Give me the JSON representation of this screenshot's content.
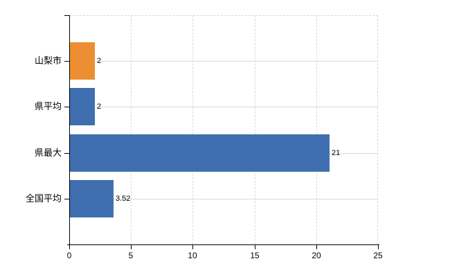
{
  "chart_data": {
    "type": "bar",
    "orientation": "horizontal",
    "title": "",
    "categories": [
      "山梨市",
      "県平均",
      "県最大",
      "全国平均"
    ],
    "values": [
      2,
      2,
      21,
      3.52
    ],
    "value_labels": [
      "2",
      "2",
      "21",
      "3.52"
    ],
    "bar_colors": [
      "#EC8F33",
      "#3F6FAF",
      "#3F6FAF",
      "#3F6FAF"
    ],
    "xlim": [
      0,
      25
    ],
    "x_ticks": [
      0,
      5,
      10,
      15,
      20,
      25
    ],
    "x_tick_labels": [
      "0",
      "5",
      "10",
      "15",
      "20",
      "25"
    ],
    "grid": true,
    "legend": false,
    "colors": {
      "grid": "#d9d9d9",
      "axis": "#000000",
      "text": "#000000",
      "background": "#ffffff"
    }
  }
}
